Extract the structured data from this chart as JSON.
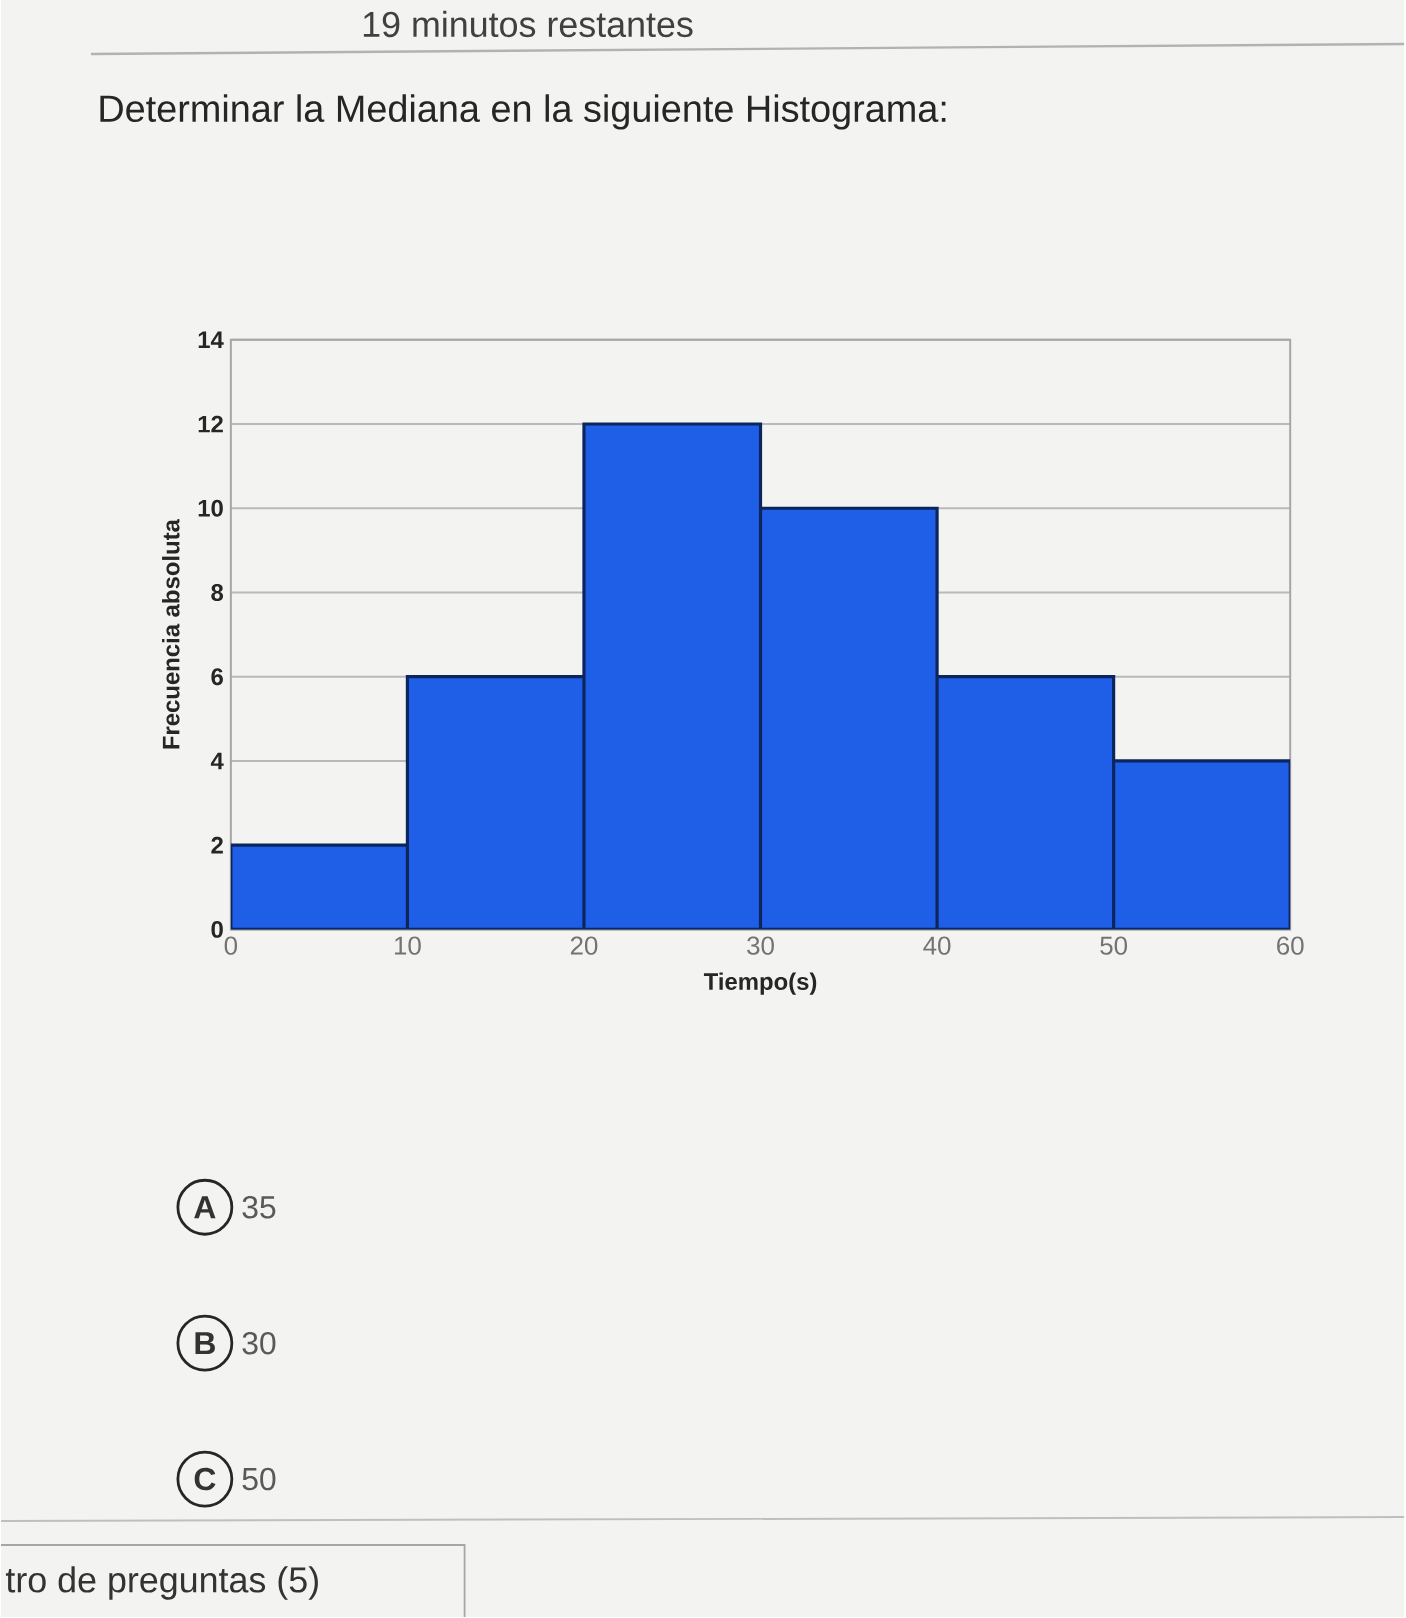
{
  "chart_data": {
    "type": "histogram",
    "title": "Determinar la Mediana en la siguiente Histograma:",
    "xlabel": "Tiempo(s)",
    "ylabel": "Frecuencia absoluta",
    "bins": [
      0,
      10,
      20,
      30,
      40,
      50,
      60
    ],
    "values": [
      2,
      6,
      12,
      10,
      6,
      4
    ],
    "color": "#1f5fe8",
    "xlim": [
      0,
      60
    ],
    "ylim": [
      0,
      14
    ],
    "xticks": [
      0,
      10,
      20,
      30,
      40,
      50,
      60
    ],
    "yticks": [
      0,
      2,
      4,
      6,
      8,
      10,
      12,
      14
    ],
    "grid": "y",
    "annotations": [
      "19 minutos restantes",
      "A",
      "35",
      "B",
      "30",
      "C",
      "50",
      "tro de preguntas (5)"
    ]
  }
}
